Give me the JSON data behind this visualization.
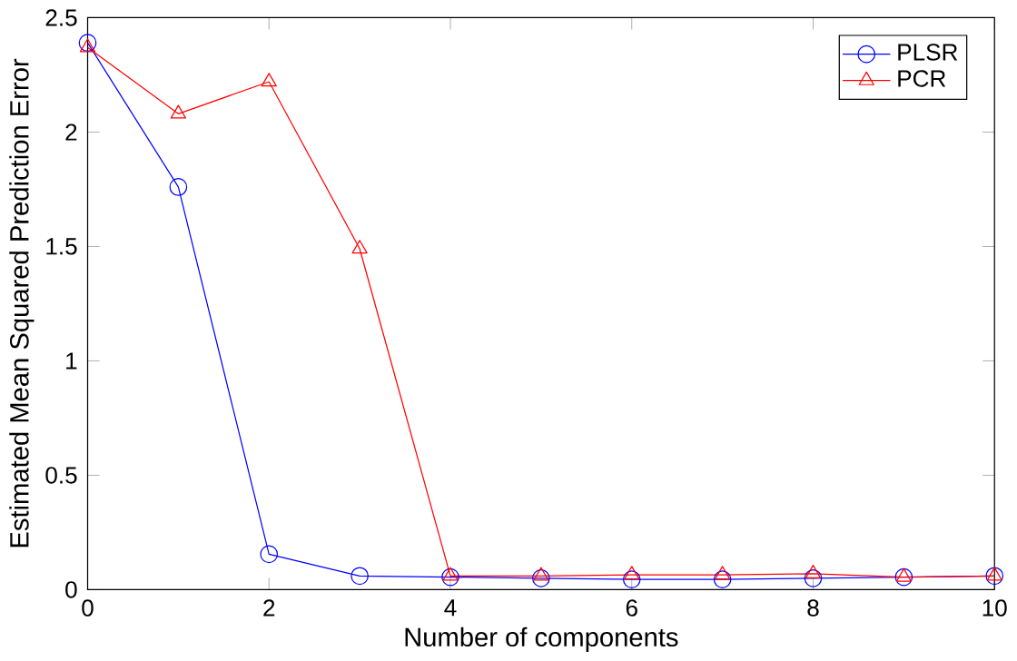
{
  "chart_data": {
    "type": "line",
    "xlabel": "Number of components",
    "ylabel": "Estimated Mean Squared Prediction Error",
    "x": [
      0,
      1,
      2,
      3,
      4,
      5,
      6,
      7,
      8,
      9,
      10
    ],
    "series": [
      {
        "name": "PLSR",
        "color": "#0000ff",
        "marker": "circle",
        "values": [
          2.39,
          1.76,
          0.155,
          0.06,
          0.055,
          0.05,
          0.045,
          0.045,
          0.05,
          0.055,
          0.06
        ]
      },
      {
        "name": "PCR",
        "color": "#ff0000",
        "marker": "triangle",
        "values": [
          2.37,
          2.08,
          2.22,
          1.49,
          0.06,
          0.06,
          0.065,
          0.065,
          0.07,
          0.055,
          0.06
        ]
      }
    ],
    "xlim": [
      0,
      10
    ],
    "xticks": [
      0,
      2,
      4,
      6,
      8,
      10
    ],
    "ylim": [
      0,
      2.5
    ],
    "yticks": [
      0,
      0.5,
      1,
      1.5,
      2,
      2.5
    ],
    "grid": false,
    "legend": "top right",
    "line_style": "solid"
  }
}
